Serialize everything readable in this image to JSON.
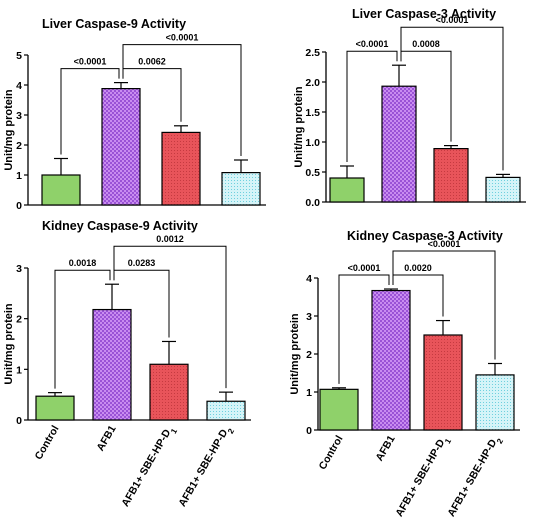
{
  "colors": {
    "control": "#8fd16a",
    "afb1": "#c98cf0",
    "d1": "#e8545a",
    "d2": "#d5f4f8",
    "outline": "#000000"
  },
  "chart_data": [
    {
      "type": "bar",
      "title": "Liver Caspase-9 Activity",
      "ylabel": "Unit/mg protein",
      "ylim": [
        0,
        5
      ],
      "yticks": [
        "0",
        "1",
        "2",
        "3",
        "4",
        "5"
      ],
      "categories": [
        "Control",
        "AFB1",
        "AFB1+ SBE-HP-D1",
        "AFB1+ SBE-HP-D2"
      ],
      "show_category_labels": false,
      "values": [
        1.0,
        3.88,
        2.42,
        1.08
      ],
      "errors": [
        0.55,
        0.2,
        0.22,
        0.42
      ],
      "comparisons": [
        {
          "from": 0,
          "to": 1,
          "label": "<0.0001"
        },
        {
          "from": 1,
          "to": 2,
          "label": "0.0062"
        },
        {
          "from": 1,
          "to": 3,
          "label": "<0.0001"
        }
      ]
    },
    {
      "type": "bar",
      "title": "Liver Caspase-3 Activity",
      "ylabel": "Unit/mg protein",
      "ylim": [
        0,
        2.5
      ],
      "yticks": [
        "0.0",
        "0.5",
        "1.0",
        "1.5",
        "2.0",
        "2.5"
      ],
      "categories": [
        "Control",
        "AFB1",
        "AFB1+ SBE-HP-D1",
        "AFB1+ SBE-HP-D2"
      ],
      "show_category_labels": false,
      "values": [
        0.4,
        1.93,
        0.89,
        0.41
      ],
      "errors": [
        0.2,
        0.35,
        0.05,
        0.05
      ],
      "comparisons": [
        {
          "from": 0,
          "to": 1,
          "label": "<0.0001"
        },
        {
          "from": 1,
          "to": 2,
          "label": "0.0008"
        },
        {
          "from": 1,
          "to": 3,
          "label": "<0.0001"
        }
      ]
    },
    {
      "type": "bar",
      "title": "Kidney Caspase-9 Activity",
      "ylabel": "Unit/mg protein",
      "ylim": [
        0,
        3
      ],
      "yticks": [
        "0",
        "1",
        "2",
        "3"
      ],
      "categories": [
        "Control",
        "AFB1",
        "AFB1+ SBE-HP-D1",
        "AFB1+ SBE-HP-D2"
      ],
      "show_category_labels": true,
      "values": [
        0.47,
        2.18,
        1.1,
        0.37
      ],
      "errors": [
        0.07,
        0.5,
        0.45,
        0.18
      ],
      "comparisons": [
        {
          "from": 0,
          "to": 1,
          "label": "0.0018"
        },
        {
          "from": 1,
          "to": 2,
          "label": "0.0283"
        },
        {
          "from": 1,
          "to": 3,
          "label": "0.0012"
        }
      ]
    },
    {
      "type": "bar",
      "title": "Kidney Caspase-3 Activity",
      "ylabel": "Unit/mg protein",
      "ylim": [
        0,
        4
      ],
      "yticks": [
        "0",
        "1",
        "2",
        "3",
        "4"
      ],
      "categories": [
        "Control",
        "AFB1",
        "AFB1+ SBE-HP-D1",
        "AFB1+ SBE-HP-D2"
      ],
      "show_category_labels": true,
      "values": [
        1.07,
        3.67,
        2.5,
        1.45
      ],
      "errors": [
        0.04,
        0.04,
        0.38,
        0.3
      ],
      "comparisons": [
        {
          "from": 0,
          "to": 1,
          "label": "<0.0001"
        },
        {
          "from": 1,
          "to": 2,
          "label": "0.0020"
        },
        {
          "from": 1,
          "to": 3,
          "label": "<0.0001"
        }
      ]
    }
  ]
}
